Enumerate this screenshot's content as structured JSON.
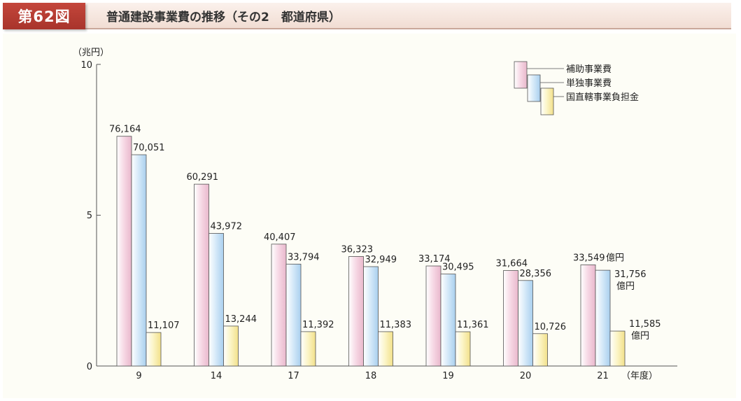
{
  "header": {
    "figure_label": "第62図",
    "title": "普通建設事業費の推移（その2　都道府県）"
  },
  "chart_data": {
    "type": "bar",
    "title": "普通建設事業費の推移（その2　都道府県）",
    "ylabel": "（兆円）",
    "xlabel": "（年度）",
    "ylim": [
      0,
      10
    ],
    "yticks": [
      "0",
      "5",
      "10"
    ],
    "categories": [
      "9",
      "14",
      "17",
      "18",
      "19",
      "20",
      "21"
    ],
    "series": [
      {
        "name": "補助事業費",
        "color": "#f6d7e4",
        "values": [
          76164,
          60291,
          40407,
          36323,
          33174,
          31664,
          33549
        ],
        "labels": [
          "76,164",
          "60,291",
          "40,407",
          "36,323",
          "33,174",
          "31,664",
          "33,549"
        ]
      },
      {
        "name": "単独事業費",
        "color": "#d3e8f8",
        "values": [
          70051,
          43972,
          33794,
          32949,
          30495,
          28356,
          31756
        ],
        "labels": [
          "70,051",
          "43,972",
          "33,794",
          "32,949",
          "30,495",
          "28,356",
          "31,756"
        ]
      },
      {
        "name": "国直轄事業負担金",
        "color": "#fbf4c4",
        "values": [
          11107,
          13244,
          11392,
          11383,
          11361,
          10726,
          11585
        ],
        "labels": [
          "11,107",
          "13,244",
          "11,392",
          "11,383",
          "11,361",
          "10,726",
          "11,585"
        ]
      }
    ],
    "unit_label": "億円"
  }
}
